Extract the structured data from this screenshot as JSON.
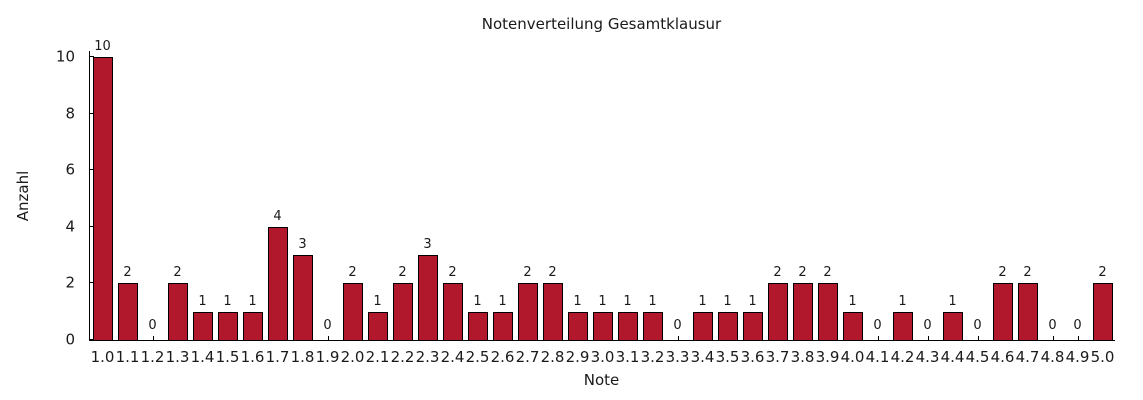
{
  "chart_data": {
    "type": "bar",
    "title": "Notenverteilung Gesamtklausur",
    "xlabel": "Note",
    "ylabel": "Anzahl",
    "categories": [
      "1.0",
      "1.1",
      "1.2",
      "1.3",
      "1.4",
      "1.5",
      "1.6",
      "1.7",
      "1.8",
      "1.9",
      "2.0",
      "2.1",
      "2.2",
      "2.3",
      "2.4",
      "2.5",
      "2.6",
      "2.7",
      "2.8",
      "2.9",
      "3.0",
      "3.1",
      "3.2",
      "3.3",
      "3.4",
      "3.5",
      "3.6",
      "3.7",
      "3.8",
      "3.9",
      "4.0",
      "4.1",
      "4.2",
      "4.3",
      "4.4",
      "4.5",
      "4.6",
      "4.7",
      "4.8",
      "4.9",
      "5.0"
    ],
    "values": [
      10,
      2,
      0,
      2,
      1,
      1,
      1,
      4,
      3,
      0,
      2,
      1,
      2,
      3,
      2,
      1,
      1,
      2,
      2,
      1,
      1,
      1,
      1,
      0,
      1,
      1,
      1,
      2,
      2,
      2,
      1,
      0,
      1,
      0,
      1,
      0,
      2,
      2,
      0,
      0,
      2
    ],
    "bar_value_labels_shown": true,
    "yticks": [
      "0",
      "2",
      "4",
      "6",
      "8",
      "10"
    ],
    "ylim": [
      0,
      10.2
    ],
    "grid": false,
    "legend": "none",
    "bar_color": "#B2182B",
    "bar_edge_color": "#000000",
    "axis_color": "#000000",
    "text_color": "#1a1a1a"
  }
}
